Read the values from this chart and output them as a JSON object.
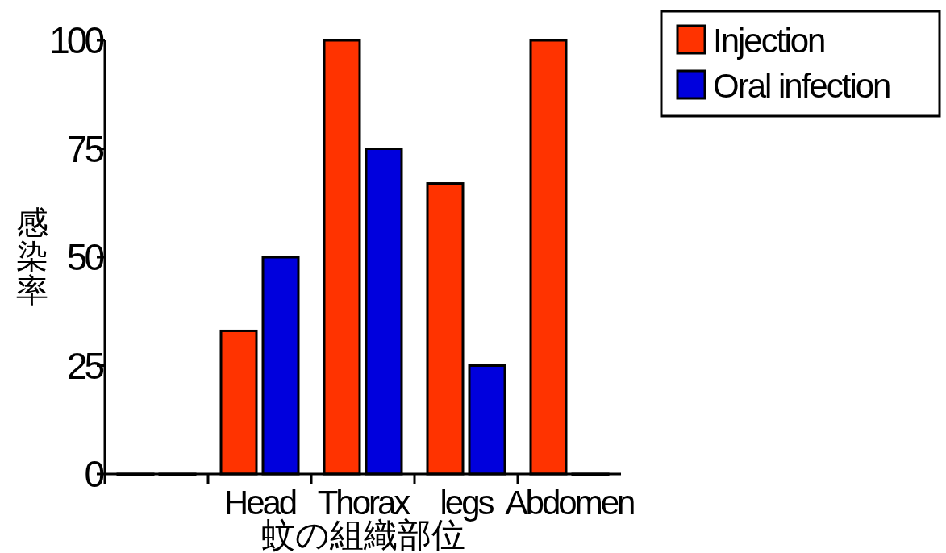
{
  "chart_data": {
    "type": "bar",
    "xlabel": "蚊の組織部位",
    "ylabel": "感染率",
    "categories": [
      null,
      "Head",
      "Thorax",
      "legs",
      "Abdomen"
    ],
    "series": [
      {
        "name": "Injection",
        "color": "#ff3300",
        "values": [
          0,
          33,
          100,
          67,
          100
        ]
      },
      {
        "name": "Oral infection",
        "color": "#0000dd",
        "values": [
          0,
          50,
          75,
          25,
          0
        ]
      }
    ],
    "ylim": [
      0,
      100
    ],
    "yticks": [
      0,
      25,
      50,
      75,
      100
    ],
    "legend": "top right"
  }
}
